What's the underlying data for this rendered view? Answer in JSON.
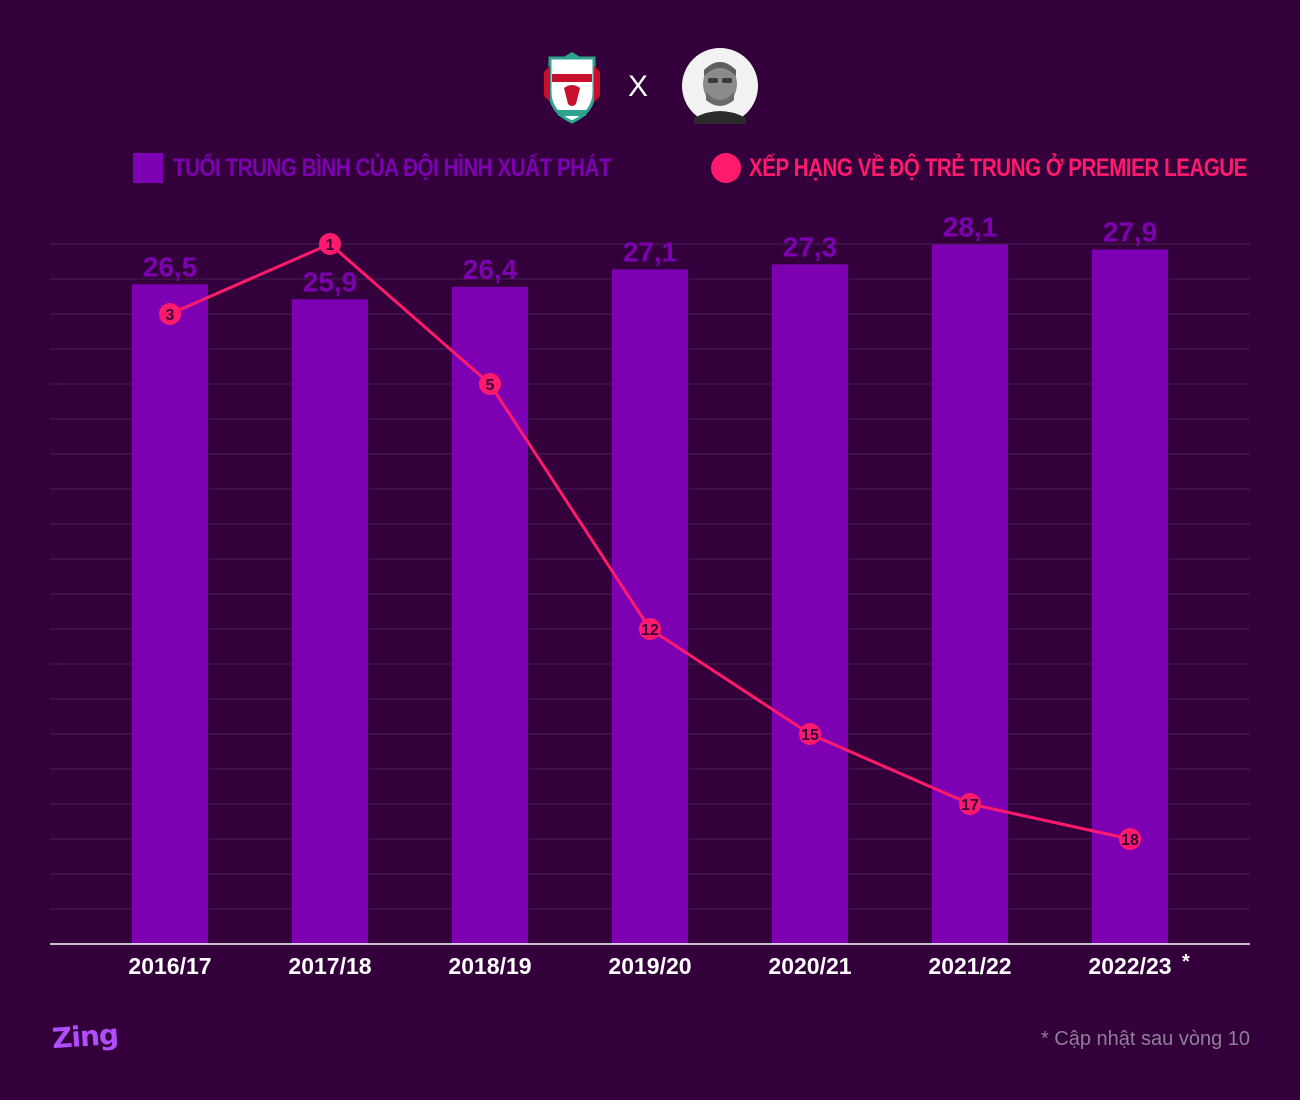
{
  "header": {
    "times_symbol": "X",
    "crest_icon": "liverpool-fc-crest-icon",
    "avatar_icon": "manager-portrait-icon"
  },
  "legend": {
    "bars_label": "TUỔI TRUNG BÌNH CỦA ĐỘI HÌNH XUẤT PHÁT",
    "rank_label": "XẾP HẠNG VỀ ĐỘ TRẺ TRUNG Ở PREMIER LEAGUE",
    "bars_color": "#7d00b2",
    "rank_color": "#ff1a6d"
  },
  "chart_data": {
    "type": "bar",
    "categories": [
      "2016/17",
      "2017/18",
      "2018/19",
      "2019/20",
      "2020/21",
      "2021/22",
      "2022/23"
    ],
    "category_suffix_last": "*",
    "series": [
      {
        "name": "TUỔI TRUNG BÌNH CỦA ĐỘI HÌNH XUẤT PHÁT",
        "type": "bar",
        "values": [
          26.5,
          25.9,
          26.4,
          27.1,
          27.3,
          28.1,
          27.9
        ],
        "labels": [
          "26,5",
          "25,9",
          "26,4",
          "27,1",
          "27,3",
          "28,1",
          "27,9"
        ],
        "color": "#7d00b2"
      },
      {
        "name": "XẾP HẠNG VỀ ĐỘ TRẺ TRUNG Ở PREMIER LEAGUE",
        "type": "line",
        "values": [
          3,
          1,
          5,
          12,
          15,
          17,
          18
        ],
        "color": "#ff1a6d"
      }
    ],
    "bar_ylim": [
      0,
      28.2
    ],
    "rank_ylim": [
      1,
      21
    ],
    "grid": true
  },
  "footer": {
    "logo": "Zing",
    "footnote": "* Cập nhật sau vòng 10"
  }
}
